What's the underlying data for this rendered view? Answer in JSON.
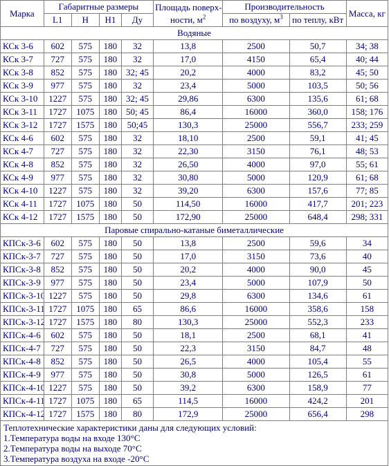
{
  "headers": {
    "mark": "Марка",
    "dims": "Габаритные размеры",
    "l1": "L1",
    "h": "H",
    "h1": "H1",
    "du": "Ду",
    "area_l1": "Площадь поверх-",
    "area_l2_pre": "ности, м",
    "area_sup": "2",
    "perf": "Производительность",
    "air_pre": "по воздуху, м",
    "air_sup": "3",
    "heat": "по теплу, кВт",
    "mass": "Масса, кг"
  },
  "sections": [
    {
      "title": "Водяные",
      "rows": [
        [
          "КСк 3-6",
          "602",
          "575",
          "180",
          "32",
          "13,8",
          "2500",
          "50,7",
          "34; 38"
        ],
        [
          "КСк 3-7",
          "727",
          "575",
          "180",
          "32",
          "17,0",
          "4150",
          "65,4",
          "40; 44"
        ],
        [
          "КСк 3-8",
          "852",
          "575",
          "180",
          "32; 45",
          "20,2",
          "4000",
          "83,2",
          "45; 50"
        ],
        [
          "КСк 3-9",
          "977",
          "575",
          "180",
          "32",
          "23,4",
          "5000",
          "103,5",
          "50; 56"
        ],
        [
          "КСк 3-10",
          "1227",
          "575",
          "180",
          "32; 45",
          "29,86",
          "6300",
          "135,6",
          "61; 68"
        ],
        [
          "КСк 3-11",
          "1727",
          "1075",
          "180",
          "50; 45",
          "86,4",
          "16000",
          "360,0",
          "158; 176"
        ],
        [
          "КСк 3-12",
          "1727",
          "1575",
          "180",
          "50;45",
          "130,3",
          "25000",
          "556,7",
          "233; 259"
        ],
        [
          "КСк 4-6",
          "602",
          "575",
          "180",
          "32",
          "18,10",
          "2500",
          "59,1",
          "41; 45"
        ],
        [
          "КСк 4-7",
          "727",
          "575",
          "180",
          "32",
          "22,30",
          "3150",
          "76,1",
          "48; 53"
        ],
        [
          "КСк 4-8",
          "852",
          "575",
          "180",
          "32",
          "26,50",
          "4000",
          "97,0",
          "55; 61"
        ],
        [
          "КСк 4-9",
          "977",
          "575",
          "180",
          "32",
          "30,80",
          "5000",
          "120,9",
          "61; 68"
        ],
        [
          "КСк 4-10",
          "1227",
          "575",
          "180",
          "32",
          "39,20",
          "6300",
          "157,6",
          "77; 85"
        ],
        [
          "КСк 4-11",
          "1727",
          "1075",
          "180",
          "50",
          "114,50",
          "16000",
          "417,7",
          "201; 223"
        ],
        [
          "КСк 4-12",
          "1727",
          "1575",
          "180",
          "50",
          "172,90",
          "25000",
          "648,4",
          "298; 331"
        ]
      ]
    },
    {
      "title": "Паровые спирально-катаные биметаллические",
      "rows": [
        [
          "КПСк-3-6",
          "602",
          "575",
          "180",
          "50",
          "13,8",
          "2500",
          "59,6",
          "34"
        ],
        [
          "КПСк-3-7",
          "727",
          "575",
          "180",
          "50",
          "17,0",
          "3150",
          "73,6",
          "40"
        ],
        [
          "КПСк-3-8",
          "852",
          "575",
          "180",
          "50",
          "20,2",
          "4000",
          "90,0",
          "45"
        ],
        [
          "КПСк-3-9",
          "977",
          "575",
          "180",
          "50",
          "23,4",
          "5000",
          "107,9",
          "50"
        ],
        [
          "КПСк-3-10",
          "1227",
          "575",
          "180",
          "50",
          "29,8",
          "6300",
          "134,6",
          "61"
        ],
        [
          "КПСк-3-11",
          "1727",
          "1075",
          "180",
          "65",
          "86,6",
          "16000",
          "358,6",
          "158"
        ],
        [
          "КПСк-3-12",
          "1727",
          "1575",
          "180",
          "80",
          "130,3",
          "25000",
          "552,3",
          "233"
        ],
        [
          "КПСк-4-6",
          "602",
          "575",
          "180",
          "50",
          "18,1",
          "2500",
          "68,1",
          "41"
        ],
        [
          "КПСк-4-7",
          "727",
          "575",
          "180",
          "50",
          "22,3",
          "3150",
          "84,7",
          "48"
        ],
        [
          "КПСк-4-8",
          "852",
          "575",
          "180",
          "50",
          "26,5",
          "4000",
          "105,4",
          "55"
        ],
        [
          "КПСк-4-9",
          "977",
          "575",
          "180",
          "50",
          "30,8",
          "5000",
          "126,5",
          "61"
        ],
        [
          "КПСк-4-10",
          "1227",
          "575",
          "180",
          "50",
          "39,2",
          "6300",
          "158,9",
          "77"
        ],
        [
          "КПСк-4-11",
          "1727",
          "1075",
          "180",
          "65",
          "114,5",
          "16000",
          "424,2",
          "201"
        ],
        [
          "КПСк-4-12",
          "1727",
          "1575",
          "180",
          "80",
          "172,9",
          "25000",
          "656,4",
          "298"
        ]
      ]
    }
  ],
  "notes": [
    "Теплотехнические характеристики даны для следующих условий:",
    "1.Температура воды на входе 130°С",
    "2.Температура воды на выходе 70°С",
    "3.Температура воздуха на входе -20°С"
  ]
}
